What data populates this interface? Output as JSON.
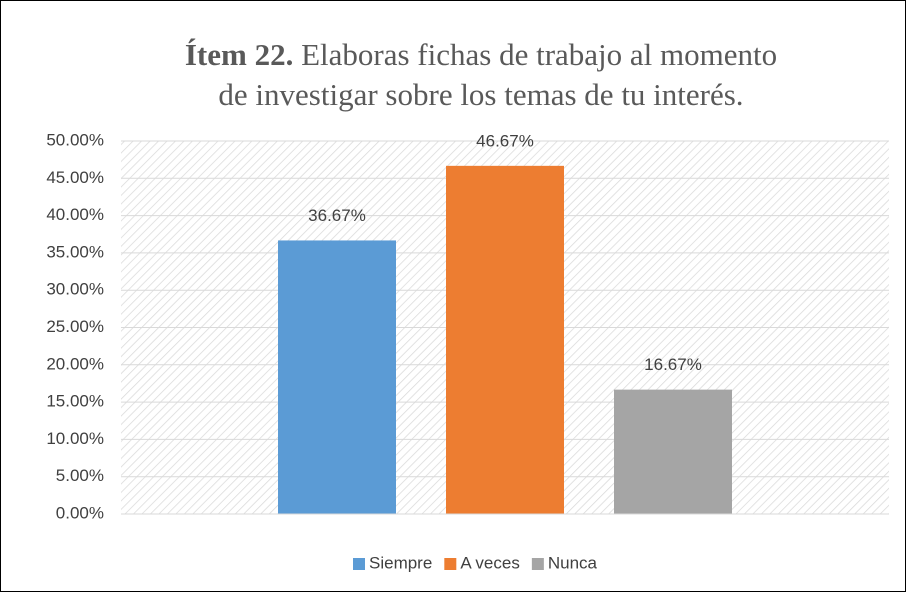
{
  "chart_data": {
    "type": "bar",
    "title": {
      "bold": "Ítem 22.",
      "text": "Elaboras fichas de trabajo al momento de investigar sobre los temas de tu interés."
    },
    "categories": [
      null
    ],
    "series": [
      {
        "name": "Siempre",
        "color": "#5b9bd5",
        "values": [
          36.67
        ],
        "value_labels": [
          "36.67%"
        ]
      },
      {
        "name": "A veces",
        "color": "#ed7d31",
        "values": [
          46.67
        ],
        "value_labels": [
          "46.67%"
        ]
      },
      {
        "name": "Nunca",
        "color": "#a5a5a5",
        "values": [
          16.67
        ],
        "value_labels": [
          "16.67%"
        ]
      }
    ],
    "ylim": [
      0,
      50
    ],
    "yticks": [
      {
        "value": 0,
        "label": "0.00%"
      },
      {
        "value": 5,
        "label": "5.00%"
      },
      {
        "value": 10,
        "label": "10.00%"
      },
      {
        "value": 15,
        "label": "15.00%"
      },
      {
        "value": 20,
        "label": "20.00%"
      },
      {
        "value": 25,
        "label": "25.00%"
      },
      {
        "value": 30,
        "label": "30.00%"
      },
      {
        "value": 35,
        "label": "35.00%"
      },
      {
        "value": 40,
        "label": "40.00%"
      },
      {
        "value": 45,
        "label": "45.00%"
      },
      {
        "value": 50,
        "label": "50.00%"
      }
    ],
    "grid": true,
    "legend": "bottom"
  }
}
